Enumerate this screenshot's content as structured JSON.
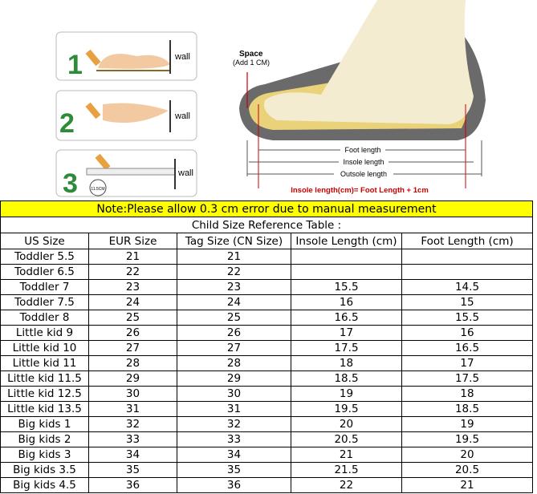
{
  "illustration": {
    "steps": [
      {
        "number": "1",
        "wall": "wall"
      },
      {
        "number": "2",
        "wall": "wall"
      },
      {
        "number": "3",
        "wall": "wall",
        "ruler_label": "11.5CM"
      }
    ],
    "space": "Space",
    "add": "(Add 1 CM)",
    "foot_length": "Foot length",
    "insole_length": "Insole length",
    "outsole_length": "Outsole length",
    "formula": "Insole length(cm)= Foot Length + 1cm"
  },
  "note": "Note:Please allow 0.3 cm error due to manual measurement",
  "table": {
    "title": "Child Size Reference Table :",
    "headers": [
      "US Size",
      "EUR Size",
      "Tag Size (CN Size)",
      "Insole Length (cm)",
      "Foot Length (cm)"
    ],
    "rows": [
      [
        "Toddler 5.5",
        21,
        21
      ],
      [
        "Toddler 6.5",
        22,
        22
      ],
      [
        "Toddler 7",
        23,
        23,
        15.5,
        14.5
      ],
      [
        "Toddler 7.5",
        24,
        24,
        16,
        15
      ],
      [
        "Toddler 8",
        25,
        25,
        16.5,
        15.5
      ],
      [
        "Little kid 9",
        26,
        26,
        17,
        16
      ],
      [
        "Little kid 10",
        27,
        27,
        17.5,
        16.5
      ],
      [
        "Little kid 11",
        28,
        28,
        18,
        17
      ],
      [
        "Little kid 11.5",
        29,
        29,
        18.5,
        17.5
      ],
      [
        "Little kid 12.5",
        30,
        30,
        19,
        18
      ],
      [
        "Little kid 13.5",
        31,
        31,
        19.5,
        18.5
      ],
      [
        "Big kids 1",
        32,
        32,
        20,
        19
      ],
      [
        "Big kids 2",
        33,
        33,
        20.5,
        19.5
      ],
      [
        "Big kids 3",
        34,
        34,
        21,
        20
      ],
      [
        "Big kids 3.5",
        35,
        35,
        21.5,
        20.5
      ],
      [
        "Big kids 4.5",
        36,
        36,
        22,
        21
      ]
    ]
  }
}
